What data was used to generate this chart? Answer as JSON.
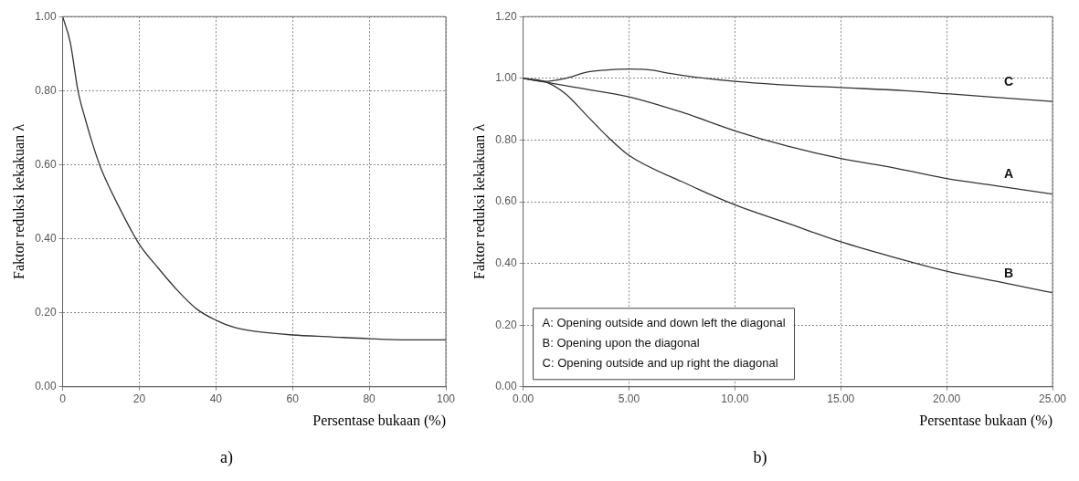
{
  "chart_data": [
    {
      "type": "line",
      "title": "a)",
      "xlabel": "Persentase bukaan (%)",
      "ylabel": "Faktor reduksi kekakuan λ",
      "xlim": [
        0,
        100
      ],
      "ylim": [
        0,
        1
      ],
      "xticks": [
        0,
        20,
        40,
        60,
        80,
        100
      ],
      "yticks": [
        {
          "value": 0,
          "label": "0.00"
        },
        {
          "value": 0.2,
          "label": "0.20"
        },
        {
          "value": 0.4,
          "label": "0.40"
        },
        {
          "value": 0.6,
          "label": "0.60"
        },
        {
          "value": 0.8,
          "label": "0.80"
        },
        {
          "value": 1,
          "label": "1.00"
        }
      ],
      "grid": true,
      "series": [
        {
          "color": "#333333",
          "x": [
            0,
            2,
            4,
            6,
            8,
            10,
            15,
            20,
            25,
            30,
            35,
            40,
            45,
            50,
            60,
            70,
            80,
            90,
            100
          ],
          "values": [
            1.0,
            0.93,
            0.8,
            0.72,
            0.65,
            0.59,
            0.48,
            0.385,
            0.32,
            0.26,
            0.21,
            0.18,
            0.16,
            0.15,
            0.14,
            0.135,
            0.13,
            0.127,
            0.127
          ]
        }
      ]
    },
    {
      "type": "line",
      "title": "b)",
      "xlabel": "Persentase bukaan (%)",
      "ylabel": "Faktor reduksi kekakuan λ",
      "xlim": [
        0,
        25
      ],
      "ylim": [
        0,
        1.2
      ],
      "xticks": [
        {
          "value": 0,
          "label": "0.00"
        },
        {
          "value": 5,
          "label": "5.00"
        },
        {
          "value": 10,
          "label": "10.00"
        },
        {
          "value": 15,
          "label": "15.00"
        },
        {
          "value": 20,
          "label": "20.00"
        },
        {
          "value": 25,
          "label": "25.00"
        }
      ],
      "yticks": [
        {
          "value": 0,
          "label": "0.00"
        },
        {
          "value": 0.2,
          "label": "0.20"
        },
        {
          "value": 0.4,
          "label": "0.40"
        },
        {
          "value": 0.6,
          "label": "0.60"
        },
        {
          "value": 0.8,
          "label": "0.80"
        },
        {
          "value": 1,
          "label": "1.00"
        },
        {
          "value": 1.2,
          "label": "1.20"
        }
      ],
      "grid": true,
      "annotations": [
        "A: Opening outside and down left the diagonal",
        "B: Opening upon the diagonal",
        "C: Opening outside and up right the diagonal"
      ],
      "series": [
        {
          "name": "C",
          "color": "#333333",
          "x": [
            0,
            1,
            2,
            3,
            4,
            5,
            6,
            7,
            8,
            10,
            12,
            15,
            18,
            20,
            22,
            25
          ],
          "values": [
            1.0,
            0.99,
            1.0,
            1.02,
            1.027,
            1.03,
            1.027,
            1.015,
            1.005,
            0.99,
            0.98,
            0.97,
            0.96,
            0.95,
            0.94,
            0.925
          ]
        },
        {
          "name": "A",
          "color": "#333333",
          "x": [
            0,
            2.5,
            5,
            7.5,
            10,
            12.5,
            15,
            17.5,
            20,
            22.5,
            25
          ],
          "values": [
            1.0,
            0.97,
            0.94,
            0.89,
            0.83,
            0.78,
            0.74,
            0.71,
            0.675,
            0.65,
            0.625
          ]
        },
        {
          "name": "B",
          "color": "#333333",
          "x": [
            0,
            1,
            2,
            3,
            4,
            5,
            7.5,
            10,
            12.5,
            15,
            17.5,
            20,
            22.5,
            25
          ],
          "values": [
            1.0,
            0.99,
            0.95,
            0.88,
            0.81,
            0.75,
            0.665,
            0.59,
            0.53,
            0.47,
            0.42,
            0.375,
            0.34,
            0.305
          ]
        }
      ]
    }
  ]
}
